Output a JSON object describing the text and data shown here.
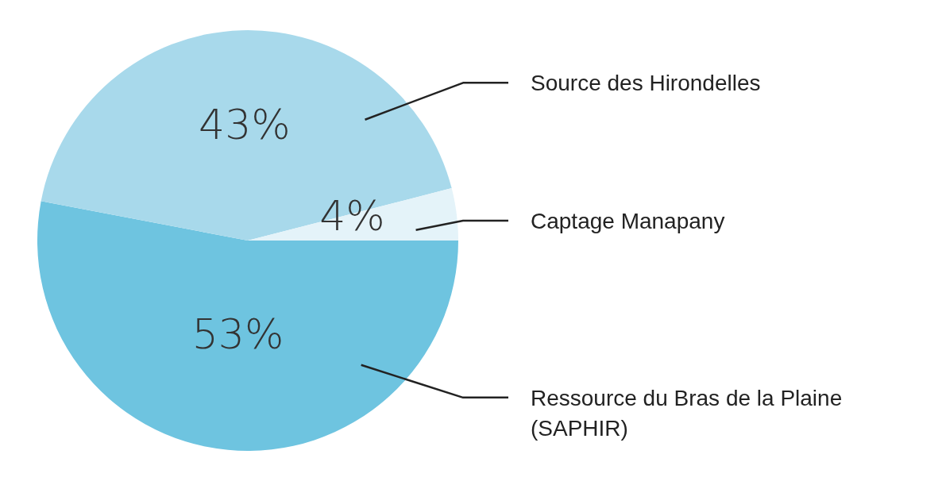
{
  "chart_data": {
    "type": "pie",
    "categories": [
      "Ressource du Bras de la Plaine (SAPHIR)",
      "Source des Hirondelles",
      "Captage Manapany"
    ],
    "values": [
      53,
      43,
      4
    ],
    "colors": [
      "#6ec4e0",
      "#a8d9eb",
      "#e4f3f9"
    ],
    "value_labels": [
      "53%",
      "43%",
      "4%"
    ]
  }
}
